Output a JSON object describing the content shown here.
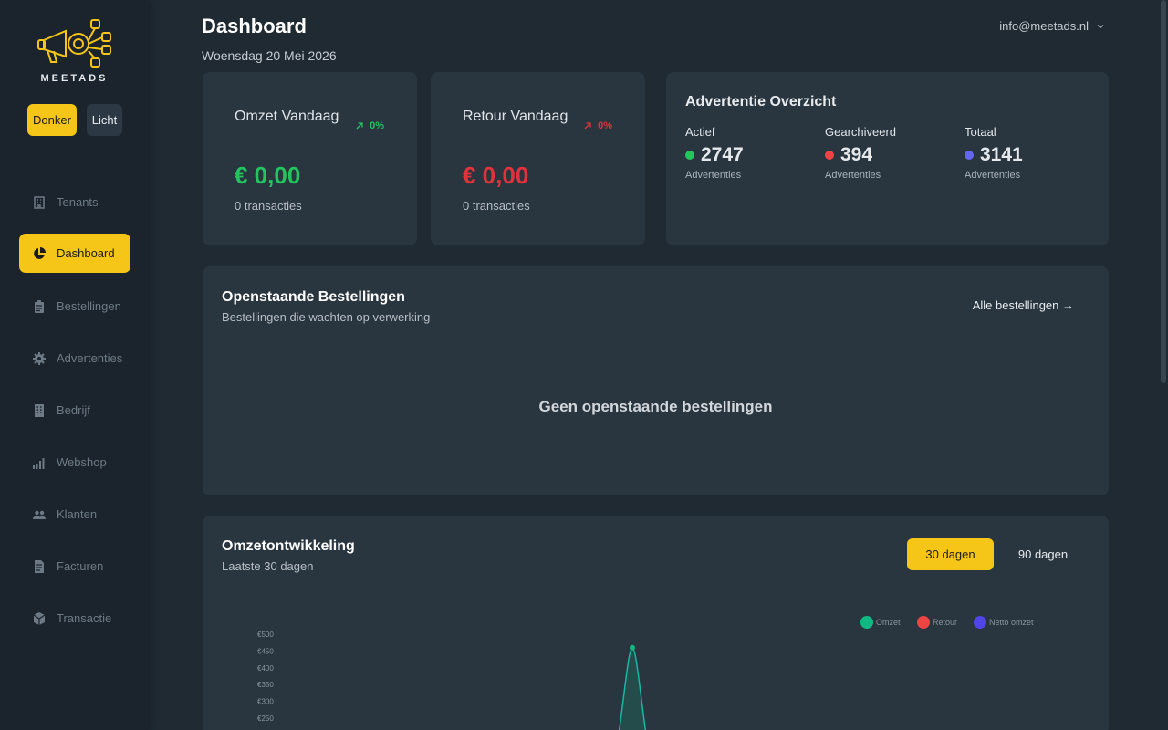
{
  "brand": {
    "name": "MEETADS",
    "accent": "#f5c518"
  },
  "theme": {
    "dark_label": "Donker",
    "light_label": "Licht"
  },
  "sidebar": {
    "items": [
      {
        "label": "Tenants",
        "icon": "building-icon"
      },
      {
        "label": "Dashboard",
        "icon": "pie-chart-icon",
        "active": true
      },
      {
        "label": "Bestellingen",
        "icon": "clipboard-icon"
      },
      {
        "label": "Advertenties",
        "icon": "gear-icon"
      },
      {
        "label": "Bedrijf",
        "icon": "office-icon"
      },
      {
        "label": "Webshop",
        "icon": "signal-bars-icon"
      },
      {
        "label": "Klanten",
        "icon": "people-icon"
      },
      {
        "label": "Facturen",
        "icon": "document-icon"
      },
      {
        "label": "Transactie",
        "icon": "box-icon"
      }
    ]
  },
  "header": {
    "title": "Dashboard",
    "date": "Woensdag 20 Mei 2026",
    "user_email": "info@meetads.nl"
  },
  "omzet": {
    "label": "Omzet Vandaag",
    "pct": "0%",
    "value": "€ 0,00",
    "sub": "0 transacties",
    "color": "#22c55e"
  },
  "retour": {
    "label": "Retour Vandaag",
    "pct": "0%",
    "value": "€ 0,00",
    "sub": "0 transacties",
    "color": "#e0333b"
  },
  "overview": {
    "title": "Advertentie Overzicht",
    "columns": [
      {
        "head": "Actief",
        "value": "2747",
        "sub": "Advertenties",
        "color": "#22c55e"
      },
      {
        "head": "Gearchiveerd",
        "value": "394",
        "sub": "Advertenties",
        "color": "#ef4444"
      },
      {
        "head": "Totaal",
        "value": "3141",
        "sub": "Advertenties",
        "color": "#6366f1"
      }
    ]
  },
  "orders": {
    "title": "Openstaande Bestellingen",
    "subtitle": "Bestellingen die wachten op verwerking",
    "link": "Alle bestellingen →",
    "empty": "Geen openstaande bestellingen"
  },
  "revenue": {
    "title": "Omzetontwikkeling",
    "subtitle": "Laatste 30 dagen",
    "range_30": "30 dagen",
    "range_90": "90 dagen"
  },
  "chart_data": {
    "type": "line",
    "legend": [
      {
        "name": "Omzet",
        "color": "#10b981"
      },
      {
        "name": "Retour",
        "color": "#ef4444"
      },
      {
        "name": "Netto omzet",
        "color": "#4f46e5"
      }
    ],
    "y_ticks": [
      "€500",
      "€450",
      "€400",
      "€350",
      "€300",
      "€250"
    ],
    "ylim": [
      250,
      500
    ],
    "peak_value": 460
  }
}
